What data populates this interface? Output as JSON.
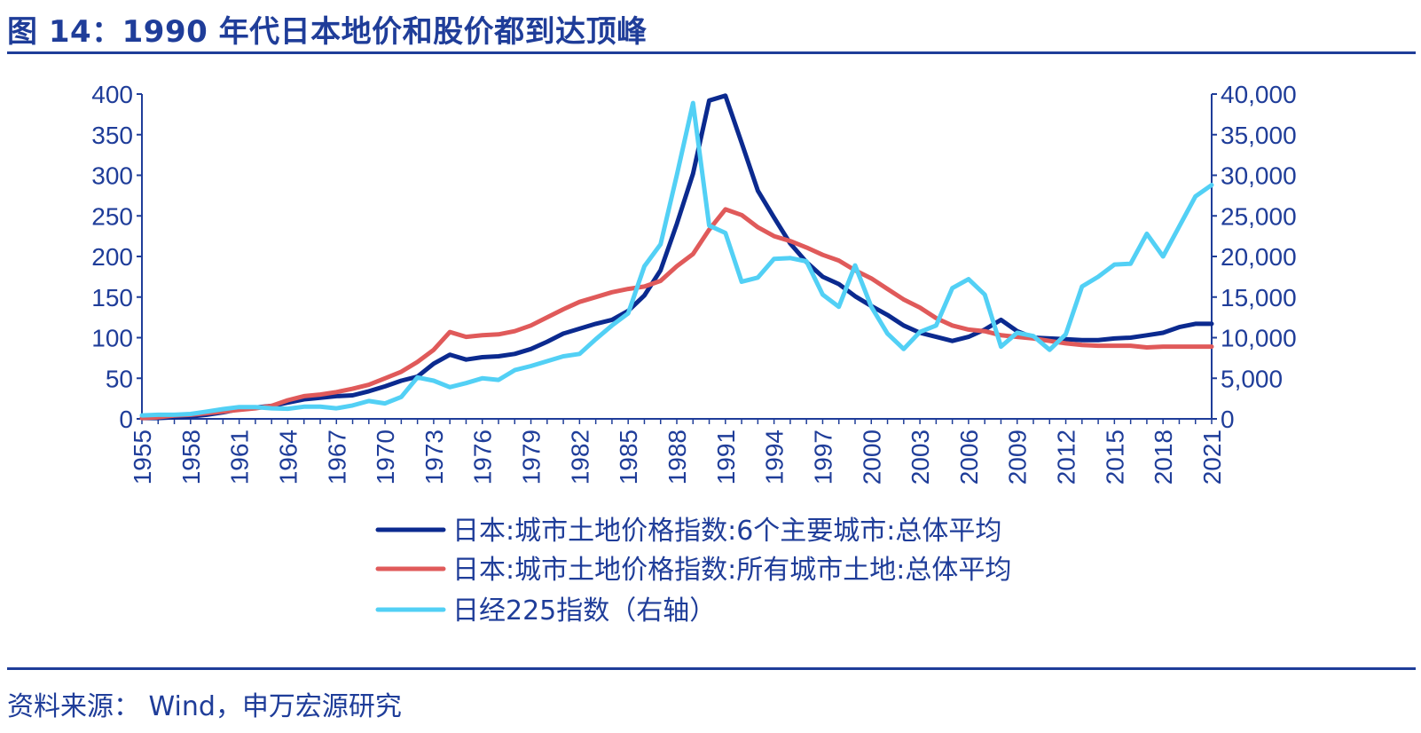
{
  "header": {
    "title": "图 14：1990 年代日本地价和股价都到达顶峰"
  },
  "footer": {
    "source": "资料来源： Wind，申万宏源研究"
  },
  "colors": {
    "accent": "#1f3d99",
    "series_navy": "#0b2a8f",
    "series_red": "#e05a5a",
    "series_cyan": "#52d0f5"
  },
  "chart_data": {
    "type": "line",
    "title": "图 14：1990 年代日本地价和股价都到达顶峰",
    "xlabel": "",
    "ylabel": "",
    "y2label": "",
    "x_ticks": [
      "1955",
      "1958",
      "1961",
      "1964",
      "1967",
      "1970",
      "1973",
      "1976",
      "1979",
      "1982",
      "1985",
      "1988",
      "1991",
      "1994",
      "1997",
      "2000",
      "2003",
      "2006",
      "2009",
      "2012",
      "2015",
      "2018",
      "2021"
    ],
    "y_ticks_left": [
      "400",
      "350",
      "300",
      "250",
      "200",
      "150",
      "100",
      "50",
      "0"
    ],
    "y_ticks_right": [
      "40,000",
      "35,000",
      "30,000",
      "25,000",
      "20,000",
      "15,000",
      "10,000",
      "5,000",
      "0"
    ],
    "ylim": [
      0,
      400
    ],
    "y2lim": [
      0,
      40000
    ],
    "xlim": [
      1955,
      2021
    ],
    "legend_position": "bottom",
    "grid": false,
    "series": [
      {
        "name": "日本:城市土地价格指数:6个主要城市:总体平均",
        "axis": "left",
        "color": "#0b2a8f",
        "x": [
          1955,
          1956,
          1957,
          1958,
          1959,
          1960,
          1961,
          1962,
          1963,
          1964,
          1965,
          1966,
          1967,
          1968,
          1969,
          1970,
          1971,
          1972,
          1973,
          1974,
          1975,
          1976,
          1977,
          1978,
          1979,
          1980,
          1981,
          1982,
          1983,
          1984,
          1985,
          1986,
          1987,
          1988,
          1989,
          1990,
          1991,
          1992,
          1993,
          1994,
          1995,
          1996,
          1997,
          1998,
          1999,
          2000,
          2001,
          2002,
          2003,
          2004,
          2005,
          2006,
          2007,
          2008,
          2009,
          2010,
          2011,
          2012,
          2013,
          2014,
          2015,
          2016,
          2017,
          2018,
          2019,
          2020,
          2021
        ],
        "y": [
          1,
          1,
          2,
          3,
          5,
          8,
          12,
          14,
          16,
          20,
          24,
          26,
          28,
          29,
          34,
          40,
          47,
          52,
          68,
          79,
          73,
          76,
          77,
          80,
          86,
          95,
          105,
          111,
          117,
          122,
          133,
          152,
          183,
          240,
          302,
          392,
          398,
          340,
          281,
          248,
          216,
          193,
          175,
          166,
          151,
          139,
          128,
          115,
          106,
          101,
          96,
          101,
          110,
          122,
          108,
          100,
          99,
          98,
          97,
          97,
          99,
          100,
          103,
          106,
          113,
          117,
          117
        ]
      },
      {
        "name": "日本:城市土地价格指数:所有城市土地:总体平均",
        "axis": "left",
        "color": "#e05a5a",
        "x": [
          1955,
          1956,
          1957,
          1958,
          1959,
          1960,
          1961,
          1962,
          1963,
          1964,
          1965,
          1966,
          1967,
          1968,
          1969,
          1970,
          1971,
          1972,
          1973,
          1974,
          1975,
          1976,
          1977,
          1978,
          1979,
          1980,
          1981,
          1982,
          1983,
          1984,
          1985,
          1986,
          1987,
          1988,
          1989,
          1990,
          1991,
          1992,
          1993,
          1994,
          1995,
          1996,
          1997,
          1998,
          1999,
          2000,
          2001,
          2002,
          2003,
          2004,
          2005,
          2006,
          2007,
          2008,
          2009,
          2010,
          2011,
          2012,
          2013,
          2014,
          2015,
          2016,
          2017,
          2018,
          2019,
          2020,
          2021
        ],
        "y": [
          1,
          2,
          4,
          5,
          7,
          9,
          11,
          13,
          16,
          23,
          28,
          30,
          33,
          37,
          42,
          50,
          58,
          70,
          85,
          107,
          101,
          103,
          104,
          108,
          115,
          125,
          135,
          144,
          150,
          156,
          160,
          163,
          170,
          188,
          203,
          233,
          258,
          251,
          236,
          225,
          219,
          211,
          202,
          195,
          183,
          173,
          160,
          147,
          137,
          124,
          115,
          110,
          108,
          103,
          101,
          99,
          96,
          93,
          91,
          90,
          90,
          90,
          88,
          89,
          89,
          89,
          89
        ]
      },
      {
        "name": "日经225指数（右轴）",
        "axis": "right",
        "color": "#52d0f5",
        "x": [
          1955,
          1956,
          1957,
          1958,
          1959,
          1960,
          1961,
          1962,
          1963,
          1964,
          1965,
          1966,
          1967,
          1968,
          1969,
          1970,
          1971,
          1972,
          1973,
          1974,
          1975,
          1976,
          1977,
          1978,
          1979,
          1980,
          1981,
          1982,
          1983,
          1984,
          1985,
          1986,
          1987,
          1988,
          1989,
          1990,
          1991,
          1992,
          1993,
          1994,
          1995,
          1996,
          1997,
          1998,
          1999,
          2000,
          2001,
          2002,
          2003,
          2004,
          2005,
          2006,
          2007,
          2008,
          2009,
          2010,
          2011,
          2012,
          2013,
          2014,
          2015,
          2016,
          2017,
          2018,
          2019,
          2020,
          2021
        ],
        "y": [
          425,
          500,
          500,
          600,
          900,
          1200,
          1450,
          1450,
          1300,
          1250,
          1500,
          1500,
          1300,
          1650,
          2200,
          1900,
          2700,
          5100,
          4700,
          3900,
          4400,
          5000,
          4800,
          6000,
          6500,
          7100,
          7700,
          8000,
          9800,
          11500,
          13000,
          18800,
          21500,
          30000,
          38900,
          23800,
          22900,
          16900,
          17400,
          19700,
          19800,
          19400,
          15300,
          13800,
          18900,
          13800,
          10500,
          8600,
          10700,
          11500,
          16100,
          17200,
          15300,
          8900,
          10600,
          10200,
          8500,
          10400,
          16300,
          17500,
          19000,
          19100,
          22800,
          20000,
          23700,
          27400,
          28800
        ]
      }
    ]
  }
}
